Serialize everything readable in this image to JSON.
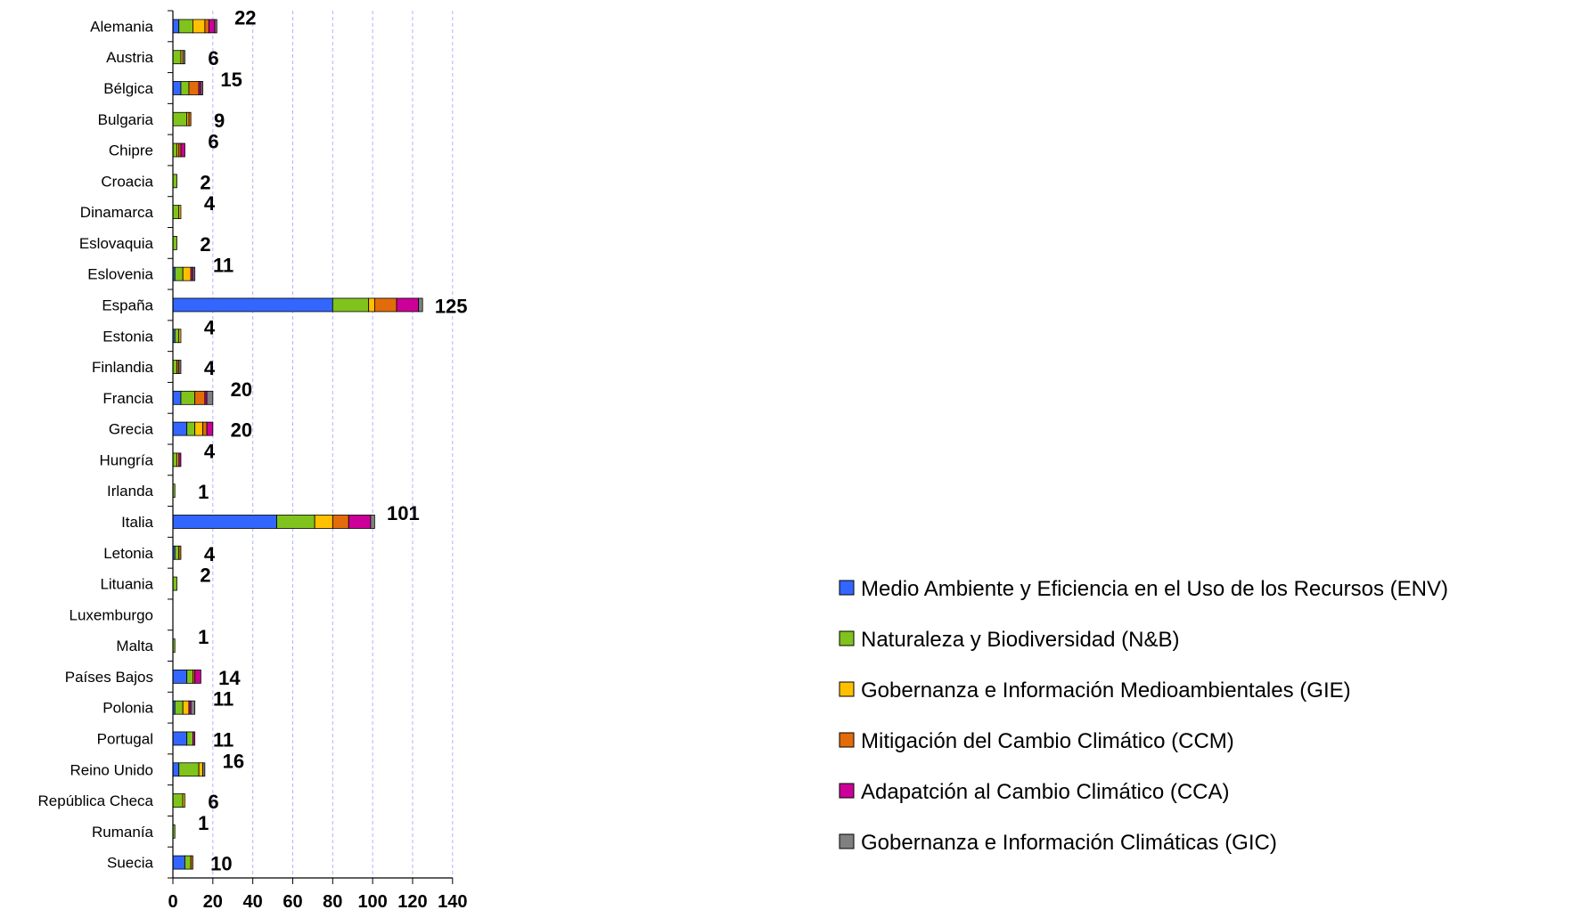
{
  "chart_data": {
    "type": "bar",
    "orientation": "horizontal",
    "stacked": true,
    "title": "",
    "xlabel": "",
    "ylabel": "",
    "xlim": [
      0,
      140
    ],
    "x_ticks": [
      "0",
      "20",
      "40",
      "60",
      "80",
      "100",
      "120",
      "140"
    ],
    "grid": "vertical dashed",
    "legend_position": "bottom-right",
    "categories": [
      "Alemania",
      "Austria",
      "Bélgica",
      "Bulgaria",
      "Chipre",
      "Croacia",
      "Dinamarca",
      "Eslovaquia",
      "Eslovenia",
      "España",
      "Estonia",
      "Finlandia",
      "Francia",
      "Grecia",
      "Hungría",
      "Irlanda",
      "Italia",
      "Letonia",
      "Lituania",
      "Luxemburgo",
      "Malta",
      "Países Bajos",
      "Polonia",
      "Portugal",
      "Reino Unido",
      "República Checa",
      "Rumanía",
      "Suecia"
    ],
    "totals": [
      "22",
      "6",
      "15",
      "9",
      "6",
      "2",
      "4",
      "2",
      "11",
      "125",
      "4",
      "4",
      "20",
      "20",
      "4",
      "1",
      "101",
      "4",
      "2",
      "",
      "1",
      "14",
      "11",
      "11",
      "16",
      "6",
      "1",
      "10"
    ],
    "series": [
      {
        "name": "Medio Ambiente y Eficiencia en el Uso de los Recursos (ENV)",
        "color": "#3366ff",
        "values": [
          3,
          0,
          4,
          0,
          0,
          0,
          0,
          0,
          1,
          80,
          1,
          0,
          4,
          7,
          0,
          0,
          52,
          1,
          0,
          0,
          0,
          7,
          1,
          7,
          3,
          0,
          0,
          6
        ]
      },
      {
        "name": "Naturaleza y Biodiversidad (N&B)",
        "color": "#80c31c",
        "values": [
          7,
          4,
          4,
          7,
          2,
          2,
          3,
          2,
          4,
          18,
          2,
          2,
          7,
          4,
          2,
          1,
          19,
          2,
          2,
          0,
          1,
          3,
          4,
          3,
          10,
          5,
          1,
          3
        ]
      },
      {
        "name": "Gobernanza e Información Medioambientales (GIE)",
        "color": "#ffc000",
        "values": [
          6,
          1,
          0,
          1,
          1,
          0,
          1,
          0,
          4,
          3,
          1,
          0,
          0,
          4,
          1,
          0,
          9,
          0,
          0,
          0,
          0,
          0,
          3,
          0,
          2,
          1,
          0,
          0
        ]
      },
      {
        "name": "Mitigación del Cambio Climático (CCM)",
        "color": "#e36c0a",
        "values": [
          2,
          0,
          5,
          1,
          1,
          0,
          0,
          0,
          0,
          11,
          0,
          1,
          5,
          2,
          0,
          0,
          8,
          1,
          0,
          0,
          0,
          1,
          0,
          0,
          0,
          0,
          0,
          1
        ]
      },
      {
        "name": "Adapatción al Cambio Climático (CCA)",
        "color": "#cc0099",
        "values": [
          3,
          0,
          1,
          0,
          2,
          0,
          0,
          0,
          1,
          11,
          0,
          0,
          1,
          3,
          1,
          0,
          11,
          0,
          0,
          0,
          0,
          3,
          1,
          1,
          0,
          0,
          0,
          0
        ]
      },
      {
        "name": "Gobernanza e Información Climáticas (GIC)",
        "color": "#808080",
        "values": [
          1,
          1,
          1,
          0,
          0,
          0,
          0,
          0,
          1,
          2,
          0,
          1,
          3,
          0,
          0,
          0,
          2,
          0,
          0,
          0,
          0,
          0,
          2,
          0,
          1,
          0,
          0,
          0
        ]
      }
    ]
  }
}
